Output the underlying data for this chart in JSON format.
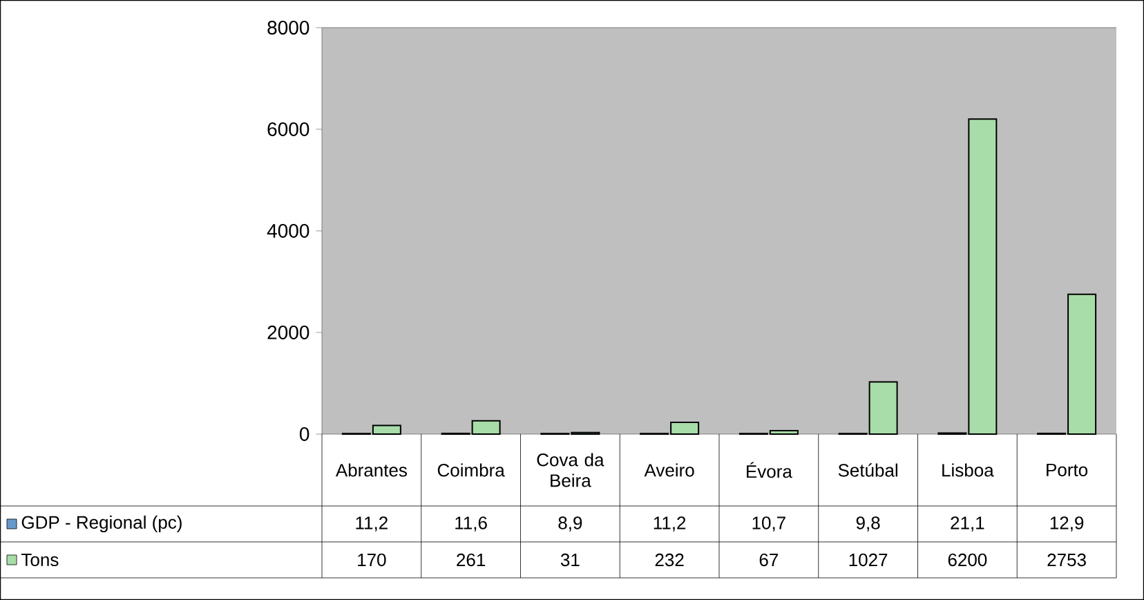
{
  "chart_data": {
    "type": "bar",
    "categories": [
      "Abrantes",
      "Coimbra",
      "Cova da Beira",
      "Aveiro",
      "Évora",
      "Setúbal",
      "Lisboa",
      "Porto"
    ],
    "series": [
      {
        "name": "GDP - Regional (pc)",
        "color": "#6699cc",
        "values": [
          11.2,
          11.6,
          8.9,
          11.2,
          10.7,
          9.8,
          21.1,
          12.9
        ],
        "value_labels": [
          "11,2",
          "11,6",
          "8,9",
          "11,2",
          "10,7",
          "9,8",
          "21,1",
          "12,9"
        ]
      },
      {
        "name": "Tons",
        "color": "#a8dca8",
        "values": [
          170,
          261,
          31,
          232,
          67,
          1027,
          6200,
          2753
        ],
        "value_labels": [
          "170",
          "261",
          "31",
          "232",
          "67",
          "1027",
          "6200",
          "2753"
        ]
      }
    ],
    "ylim": [
      0,
      8000
    ],
    "yticks": [
      0,
      2000,
      4000,
      6000,
      8000
    ],
    "grid": false,
    "legend": "bottom"
  }
}
